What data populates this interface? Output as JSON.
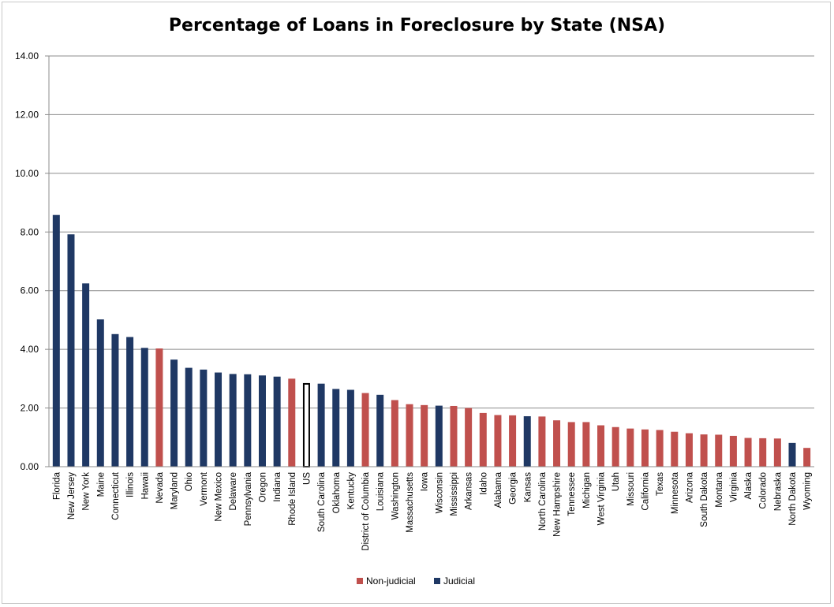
{
  "chart_data": {
    "type": "bar",
    "title": "Percentage of Loans in Foreclosure by State (NSA)",
    "xlabel": "",
    "ylabel": "",
    "ylim": [
      0,
      14
    ],
    "yticks": [
      "0.00",
      "2.00",
      "4.00",
      "6.00",
      "8.00",
      "10.00",
      "12.00",
      "14.00"
    ],
    "grid": true,
    "legend_position": "bottom-center",
    "colors": {
      "Non-judicial": "#c0504d",
      "Judicial": "#1f3864",
      "US": "#ffffff",
      "US_outline": "#000000",
      "grid": "#8c8c8c"
    },
    "legend": [
      {
        "label": "Non-judicial",
        "color": "#c0504d"
      },
      {
        "label": "Judicial",
        "color": "#1f3864"
      }
    ],
    "categories": [
      "Florida",
      "New Jersey",
      "New York",
      "Maine",
      "Connecticut",
      "Illinois",
      "Hawaii",
      "Nevada",
      "Maryland",
      "Ohio",
      "Vermont",
      "New Mexico",
      "Delaware",
      "Pennsylvania",
      "Oregon",
      "Indiana",
      "Rhode Island",
      "US",
      "South Carolina",
      "Oklahoma",
      "Kentucky",
      "District of Columbia",
      "Louisiana",
      "Washington",
      "Massachusetts",
      "Iowa",
      "Wisconsin",
      "Mississippi",
      "Arkansas",
      "Idaho",
      "Alabama",
      "Georgia",
      "Kansas",
      "North Carolina",
      "New Hampshire",
      "Tennessee",
      "Michigan",
      "West Virginia",
      "Utah",
      "Missouri",
      "California",
      "Texas",
      "Minnesota",
      "Arizona",
      "South Dakota",
      "Montana",
      "Virginia",
      "Alaska",
      "Colorado",
      "Nebraska",
      "North Dakota",
      "Wyoming"
    ],
    "values": [
      8.58,
      7.92,
      6.25,
      5.02,
      4.52,
      4.42,
      4.05,
      4.03,
      3.65,
      3.37,
      3.31,
      3.21,
      3.16,
      3.15,
      3.11,
      3.07,
      3.0,
      2.85,
      2.83,
      2.65,
      2.62,
      2.51,
      2.45,
      2.27,
      2.13,
      2.1,
      2.08,
      2.07,
      2.0,
      1.83,
      1.76,
      1.75,
      1.72,
      1.71,
      1.58,
      1.52,
      1.52,
      1.41,
      1.35,
      1.3,
      1.27,
      1.25,
      1.19,
      1.14,
      1.1,
      1.09,
      1.05,
      0.98,
      0.97,
      0.96,
      0.81,
      0.64
    ],
    "groups": [
      "Judicial",
      "Judicial",
      "Judicial",
      "Judicial",
      "Judicial",
      "Judicial",
      "Judicial",
      "Non-judicial",
      "Judicial",
      "Judicial",
      "Judicial",
      "Judicial",
      "Judicial",
      "Judicial",
      "Judicial",
      "Judicial",
      "Non-judicial",
      "US",
      "Judicial",
      "Judicial",
      "Judicial",
      "Non-judicial",
      "Judicial",
      "Non-judicial",
      "Non-judicial",
      "Non-judicial",
      "Judicial",
      "Non-judicial",
      "Non-judicial",
      "Non-judicial",
      "Non-judicial",
      "Non-judicial",
      "Judicial",
      "Non-judicial",
      "Non-judicial",
      "Non-judicial",
      "Non-judicial",
      "Non-judicial",
      "Non-judicial",
      "Non-judicial",
      "Non-judicial",
      "Non-judicial",
      "Non-judicial",
      "Non-judicial",
      "Non-judicial",
      "Non-judicial",
      "Non-judicial",
      "Non-judicial",
      "Non-judicial",
      "Non-judicial",
      "Judicial",
      "Non-judicial"
    ]
  }
}
